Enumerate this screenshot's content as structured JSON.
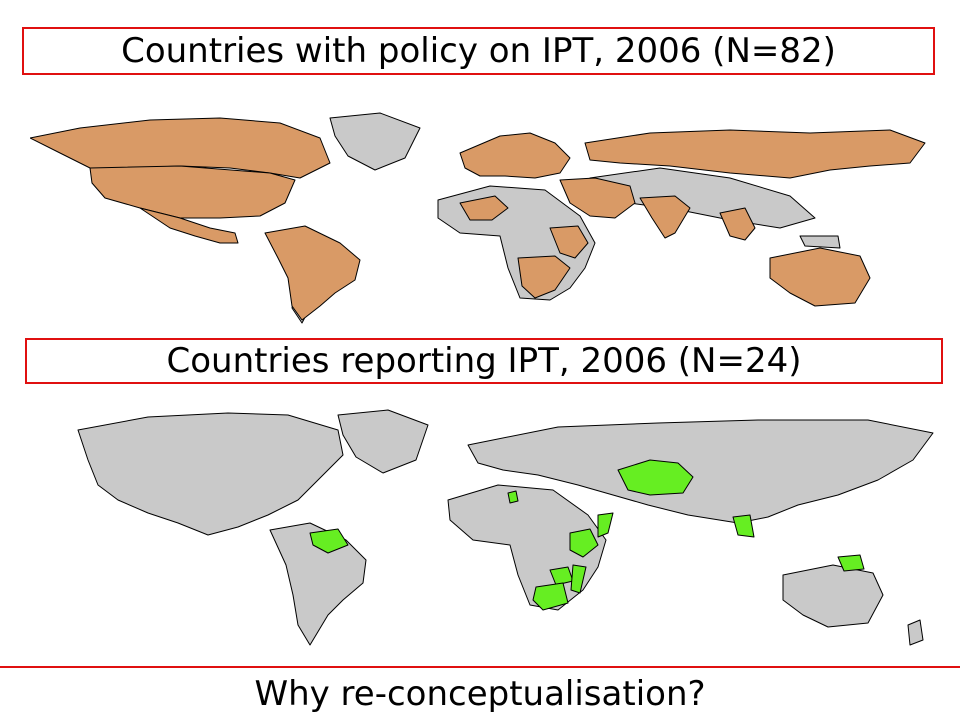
{
  "slide": {
    "title_top": "Countries with policy on IPT, 2006 (N=82)",
    "title_bottom": "Countries reporting IPT, 2006 (N=24)",
    "footer": "Why re-conceptualisation?"
  },
  "colors": {
    "border": "#e01010",
    "policy_fill": "#d99a66",
    "reporting_fill": "#66ee22",
    "base_fill": "#c9c9c9",
    "outline": "#000000"
  },
  "maps": [
    {
      "name": "policy-map",
      "highlight_color": "#d99a66",
      "highlighted_regions": [
        "canada",
        "usa",
        "mexico",
        "south-america",
        "russia",
        "europe",
        "middle-east",
        "india",
        "southeast-asia",
        "australia",
        "east-africa",
        "southern-africa"
      ]
    },
    {
      "name": "reporting-map",
      "highlight_color": "#66ee22",
      "highlighted_regions": [
        "kazakhstan",
        "venezuela",
        "ethiopia",
        "somalia",
        "zimbabwe",
        "south-africa",
        "mozambique",
        "thailand",
        "papua-new-guinea"
      ]
    }
  ]
}
